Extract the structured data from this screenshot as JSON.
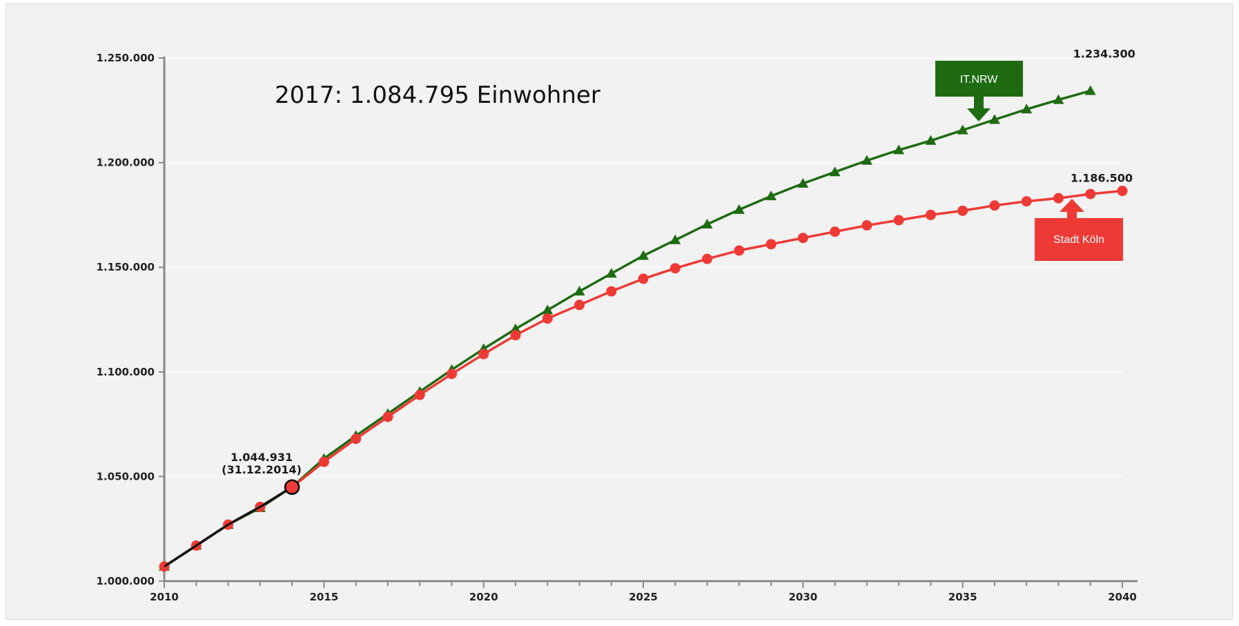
{
  "chart_data": {
    "type": "line",
    "headline": "2017: 1.084.795 Einwohner",
    "xlabel": "",
    "ylabel": "",
    "xlim": [
      2010,
      2040
    ],
    "ylim": [
      1000000,
      1250000
    ],
    "x_ticks": [
      2010,
      2015,
      2020,
      2025,
      2030,
      2035,
      2040
    ],
    "x_tick_labels": [
      "2010",
      "2015",
      "2020",
      "2025",
      "2030",
      "2035",
      "2040"
    ],
    "y_ticks": [
      1000000,
      1050000,
      1100000,
      1150000,
      1200000,
      1250000
    ],
    "y_tick_labels": [
      "1.000.000",
      "1.050.000",
      "1.100.000",
      "1.150.000",
      "1.200.000",
      "1.250.000"
    ],
    "grid": true,
    "series": [
      {
        "name": "IT.NRW",
        "color": "#1e6b12",
        "marker": "triangle",
        "x": [
          2010,
          2011,
          2012,
          2013,
          2014,
          2015,
          2016,
          2017,
          2018,
          2019,
          2020,
          2021,
          2022,
          2023,
          2024,
          2025,
          2026,
          2027,
          2028,
          2029,
          2030,
          2031,
          2032,
          2033,
          2034,
          2035,
          2036,
          2037,
          2038,
          2039
        ],
        "values": [
          1007000,
          1017000,
          1027000,
          1035000,
          1045000,
          1058500,
          1069500,
          1080000,
          1090500,
          1101000,
          1111000,
          1120500,
          1129500,
          1138500,
          1147000,
          1155500,
          1163000,
          1170500,
          1177500,
          1184000,
          1190000,
          1195500,
          1201000,
          1206000,
          1210500,
          1215500,
          1220500,
          1225500,
          1230000,
          1234300
        ]
      },
      {
        "name": "Stadt Köln",
        "color": "#ee3a35",
        "marker": "circle",
        "x": [
          2010,
          2011,
          2012,
          2013,
          2014,
          2015,
          2016,
          2017,
          2018,
          2019,
          2020,
          2021,
          2022,
          2023,
          2024,
          2025,
          2026,
          2027,
          2028,
          2029,
          2030,
          2031,
          2032,
          2033,
          2034,
          2035,
          2036,
          2037,
          2038,
          2039,
          2040
        ],
        "values": [
          1007000,
          1017000,
          1027000,
          1035500,
          1044931,
          1057000,
          1068000,
          1078500,
          1089000,
          1099000,
          1108500,
          1117500,
          1125500,
          1132000,
          1138500,
          1144500,
          1149500,
          1154000,
          1158000,
          1161000,
          1164000,
          1167000,
          1170000,
          1172500,
          1175000,
          1177000,
          1179500,
          1181500,
          1183000,
          1185000,
          1186500
        ]
      },
      {
        "name": "",
        "color": "#111111",
        "marker": "none",
        "x": [
          2010,
          2011,
          2012,
          2013,
          2014
        ],
        "values": [
          1007000,
          1017000,
          1027000,
          1035500,
          1044931
        ]
      }
    ],
    "annotations": [
      {
        "text": "1.044.931",
        "x": 2014,
        "y": 1044931
      },
      {
        "text": "(31.12.2014)",
        "x": 2014,
        "y": 1044931
      },
      {
        "text": "1.234.300",
        "x": 2039,
        "y": 1234300
      },
      {
        "text": "1.186.500",
        "x": 2040,
        "y": 1186500
      }
    ],
    "callouts": [
      {
        "label": "IT.NRW",
        "color": "#1e6b12"
      },
      {
        "label": "Stadt Köln",
        "color": "#ee3a35"
      }
    ]
  }
}
